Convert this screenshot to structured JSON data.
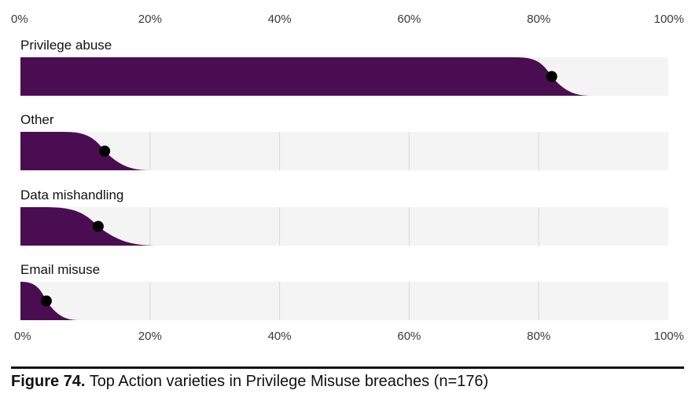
{
  "chart_data": {
    "type": "slab",
    "categories": [
      "Privilege abuse",
      "Other",
      "Data mishandling",
      "Email misuse"
    ],
    "values": [
      82,
      13,
      12,
      4
    ],
    "uncertainty_fade_end": [
      88,
      20,
      21,
      9
    ],
    "x_ticks": [
      "0%",
      "20%",
      "40%",
      "60%",
      "80%",
      "100%"
    ],
    "xlim": [
      0,
      100
    ],
    "grid": true,
    "colors": {
      "fill": "#4b0d51",
      "track": "#f4f4f4",
      "grid": "#d7d7d7",
      "dot": "#000000"
    }
  },
  "caption": {
    "figure_label": "Figure 74.",
    "text": "Top Action varieties in Privilege Misuse breaches (n=176)"
  }
}
